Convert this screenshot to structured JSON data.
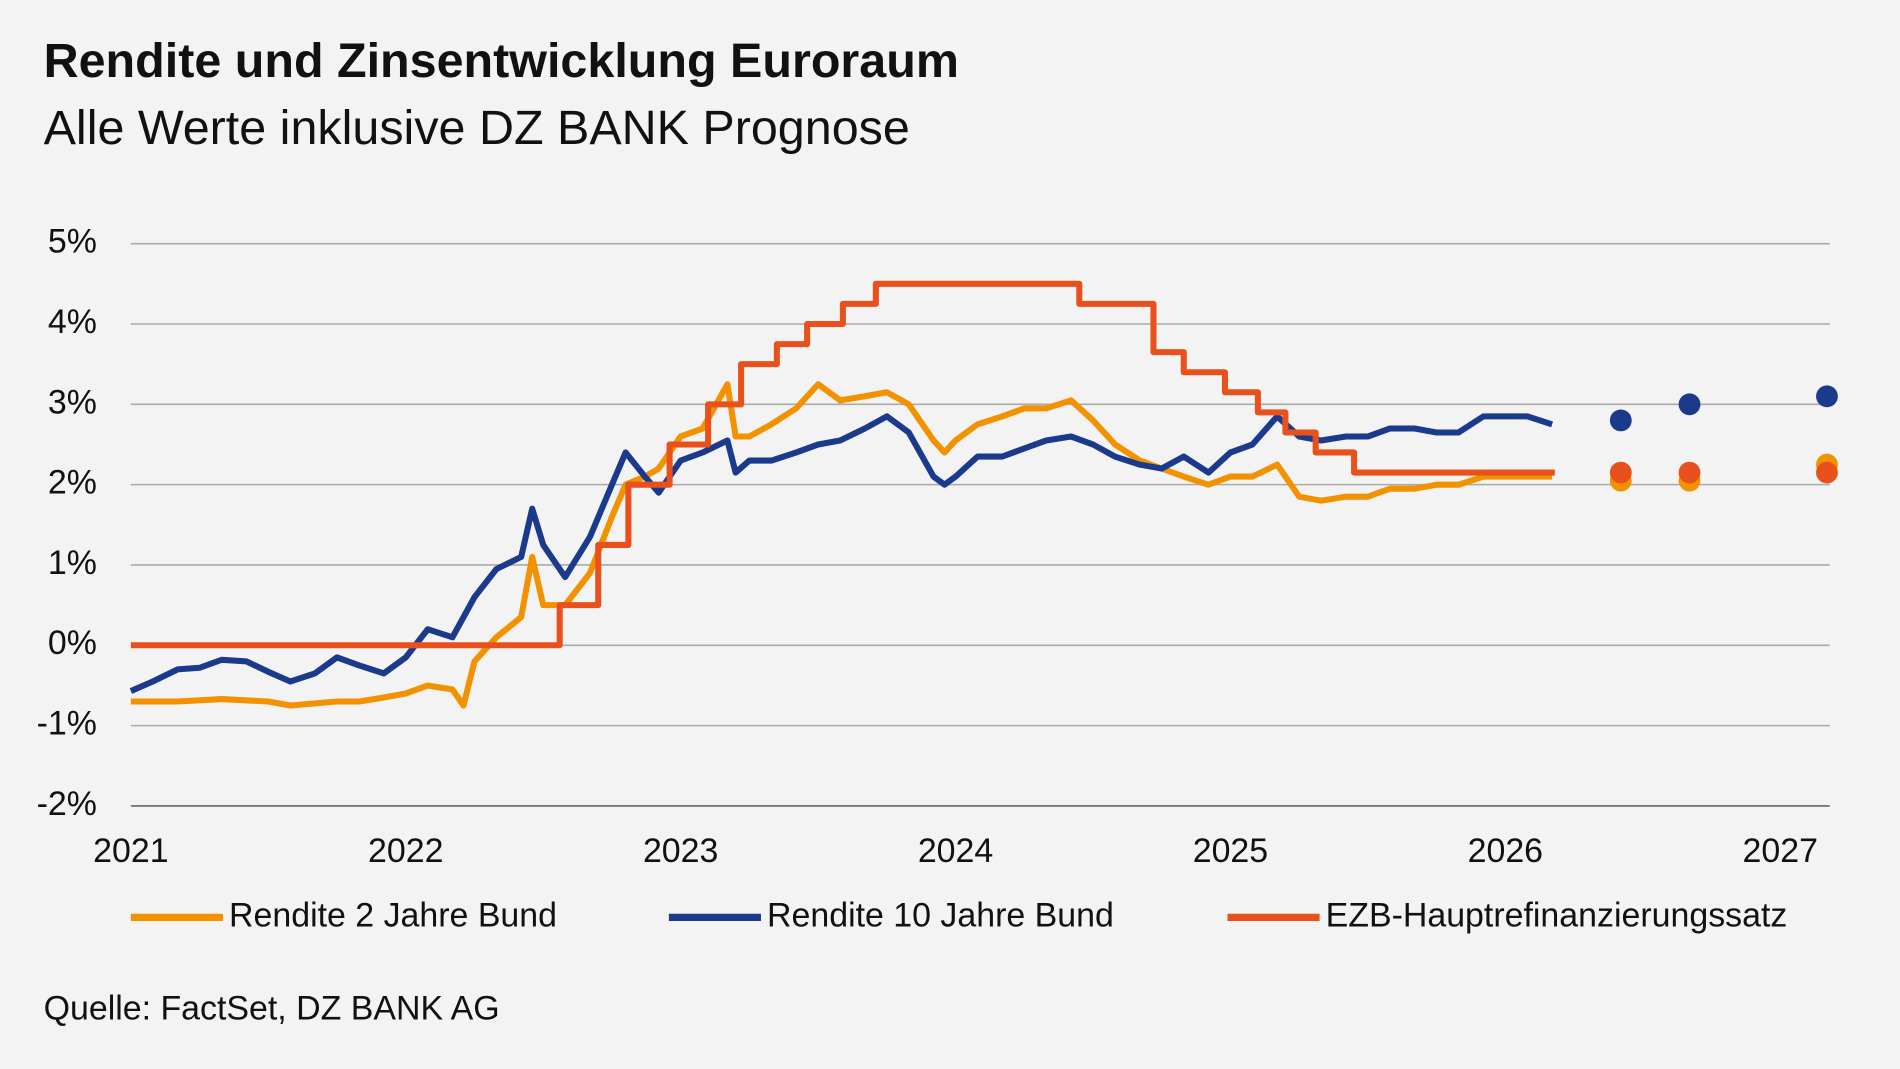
{
  "chart_data": {
    "type": "line",
    "title": "Rendite und Zinsentwicklung Euroraum",
    "subtitle": "Alle Werte inklusive DZ BANK Prognose",
    "source": "Quelle: FactSet, DZ BANK AG",
    "xlim": [
      2021,
      2027.18
    ],
    "xticks": [
      2021,
      2022,
      2023,
      2024,
      2025,
      2026,
      2027
    ],
    "ylim": [
      -2,
      5
    ],
    "yticks": [
      {
        "value": -2,
        "label": "-2%"
      },
      {
        "value": -1,
        "label": "-1%"
      },
      {
        "value": 0,
        "label": "0%"
      },
      {
        "value": 1,
        "label": "1%"
      },
      {
        "value": 2,
        "label": "2%"
      },
      {
        "value": 3,
        "label": "3%"
      },
      {
        "value": 4,
        "label": "4%"
      },
      {
        "value": 5,
        "label": "5%"
      }
    ],
    "grid": true,
    "legend": "bottom",
    "series": [
      {
        "name": "Rendite 2 Jahre Bund",
        "color": "#f39200",
        "x": [
          2021.0,
          2021.17,
          2021.33,
          2021.5,
          2021.58,
          2021.75,
          2021.83,
          2021.92,
          2022.0,
          2022.08,
          2022.17,
          2022.21,
          2022.25,
          2022.33,
          2022.42,
          2022.46,
          2022.5,
          2022.58,
          2022.67,
          2022.75,
          2022.8,
          2022.87,
          2022.92,
          2023.0,
          2023.08,
          2023.17,
          2023.2,
          2023.25,
          2023.33,
          2023.42,
          2023.5,
          2023.58,
          2023.67,
          2023.75,
          2023.83,
          2023.92,
          2023.96,
          2024.0,
          2024.08,
          2024.17,
          2024.25,
          2024.33,
          2024.42,
          2024.5,
          2024.58,
          2024.67,
          2024.75,
          2024.83,
          2024.92,
          2025.0,
          2025.08,
          2025.17,
          2025.25,
          2025.33,
          2025.42,
          2025.5,
          2025.58,
          2025.67,
          2025.75,
          2025.83,
          2025.92,
          2026.0,
          2026.08,
          2026.17
        ],
        "values": [
          -0.7,
          -0.7,
          -0.67,
          -0.7,
          -0.75,
          -0.7,
          -0.7,
          -0.65,
          -0.6,
          -0.5,
          -0.55,
          -0.75,
          -0.2,
          0.1,
          0.35,
          1.1,
          0.5,
          0.5,
          0.9,
          1.6,
          2.0,
          2.1,
          2.2,
          2.6,
          2.7,
          3.25,
          2.6,
          2.6,
          2.75,
          2.95,
          3.25,
          3.05,
          3.1,
          3.15,
          3.0,
          2.55,
          2.4,
          2.55,
          2.75,
          2.85,
          2.95,
          2.95,
          3.05,
          2.8,
          2.5,
          2.3,
          2.2,
          2.1,
          2.0,
          2.1,
          2.1,
          2.25,
          1.85,
          1.8,
          1.85,
          1.85,
          1.95,
          1.95,
          2.0,
          2.0,
          2.1,
          2.1,
          2.1,
          2.1
        ],
        "forecast_x": [
          2026.42,
          2026.67,
          2027.17
        ],
        "forecast_values": [
          2.05,
          2.05,
          2.25
        ]
      },
      {
        "name": "Rendite 10 Jahre Bund",
        "color": "#1b3a8c",
        "x": [
          2021.0,
          2021.08,
          2021.17,
          2021.25,
          2021.33,
          2021.42,
          2021.5,
          2021.58,
          2021.67,
          2021.75,
          2021.83,
          2021.92,
          2022.0,
          2022.08,
          2022.17,
          2022.25,
          2022.33,
          2022.42,
          2022.46,
          2022.5,
          2022.58,
          2022.67,
          2022.75,
          2022.8,
          2022.87,
          2022.92,
          2023.0,
          2023.08,
          2023.17,
          2023.2,
          2023.25,
          2023.33,
          2023.42,
          2023.5,
          2023.58,
          2023.67,
          2023.75,
          2023.83,
          2023.92,
          2023.96,
          2024.0,
          2024.08,
          2024.17,
          2024.25,
          2024.33,
          2024.42,
          2024.5,
          2024.58,
          2024.67,
          2024.75,
          2024.83,
          2024.92,
          2025.0,
          2025.08,
          2025.17,
          2025.25,
          2025.33,
          2025.42,
          2025.5,
          2025.58,
          2025.67,
          2025.75,
          2025.83,
          2025.92,
          2026.0,
          2026.08,
          2026.17
        ],
        "values": [
          -0.57,
          -0.45,
          -0.3,
          -0.28,
          -0.18,
          -0.2,
          -0.33,
          -0.45,
          -0.35,
          -0.15,
          -0.25,
          -0.35,
          -0.15,
          0.2,
          0.1,
          0.6,
          0.95,
          1.1,
          1.7,
          1.25,
          0.85,
          1.35,
          2.0,
          2.4,
          2.1,
          1.9,
          2.3,
          2.4,
          2.55,
          2.15,
          2.3,
          2.3,
          2.4,
          2.5,
          2.55,
          2.7,
          2.85,
          2.65,
          2.1,
          2.0,
          2.1,
          2.35,
          2.35,
          2.45,
          2.55,
          2.6,
          2.5,
          2.35,
          2.25,
          2.2,
          2.35,
          2.15,
          2.4,
          2.5,
          2.85,
          2.6,
          2.55,
          2.6,
          2.6,
          2.7,
          2.7,
          2.65,
          2.65,
          2.85,
          2.85,
          2.85,
          2.75
        ],
        "forecast_x": [
          2026.42,
          2026.67,
          2027.17
        ],
        "forecast_values": [
          2.8,
          3.0,
          3.1
        ]
      },
      {
        "name": "EZB-Hauptrefinanzierungssatz",
        "color": "#e8501c",
        "x": [
          2021,
          2022.56,
          2022.56,
          2022.7,
          2022.7,
          2022.81,
          2022.81,
          2022.96,
          2022.96,
          2023.1,
          2023.1,
          2023.22,
          2023.22,
          2023.35,
          2023.35,
          2023.46,
          2023.46,
          2023.59,
          2023.59,
          2023.71,
          2023.71,
          2024.45,
          2024.45,
          2024.72,
          2024.72,
          2024.83,
          2024.83,
          2024.98,
          2024.98,
          2025.1,
          2025.1,
          2025.2,
          2025.2,
          2025.31,
          2025.31,
          2025.45,
          2025.45,
          2026.18
        ],
        "values": [
          0,
          0,
          0.5,
          0.5,
          1.25,
          1.25,
          2.0,
          2.0,
          2.5,
          2.5,
          3.0,
          3.0,
          3.5,
          3.5,
          3.75,
          3.75,
          4.0,
          4.0,
          4.25,
          4.25,
          4.5,
          4.5,
          4.25,
          4.25,
          3.65,
          3.65,
          3.4,
          3.4,
          3.15,
          3.15,
          2.9,
          2.9,
          2.65,
          2.65,
          2.4,
          2.4,
          2.15,
          2.15
        ],
        "forecast_x": [
          2026.42,
          2026.67,
          2027.17
        ],
        "forecast_values": [
          2.15,
          2.15,
          2.15
        ]
      }
    ]
  }
}
